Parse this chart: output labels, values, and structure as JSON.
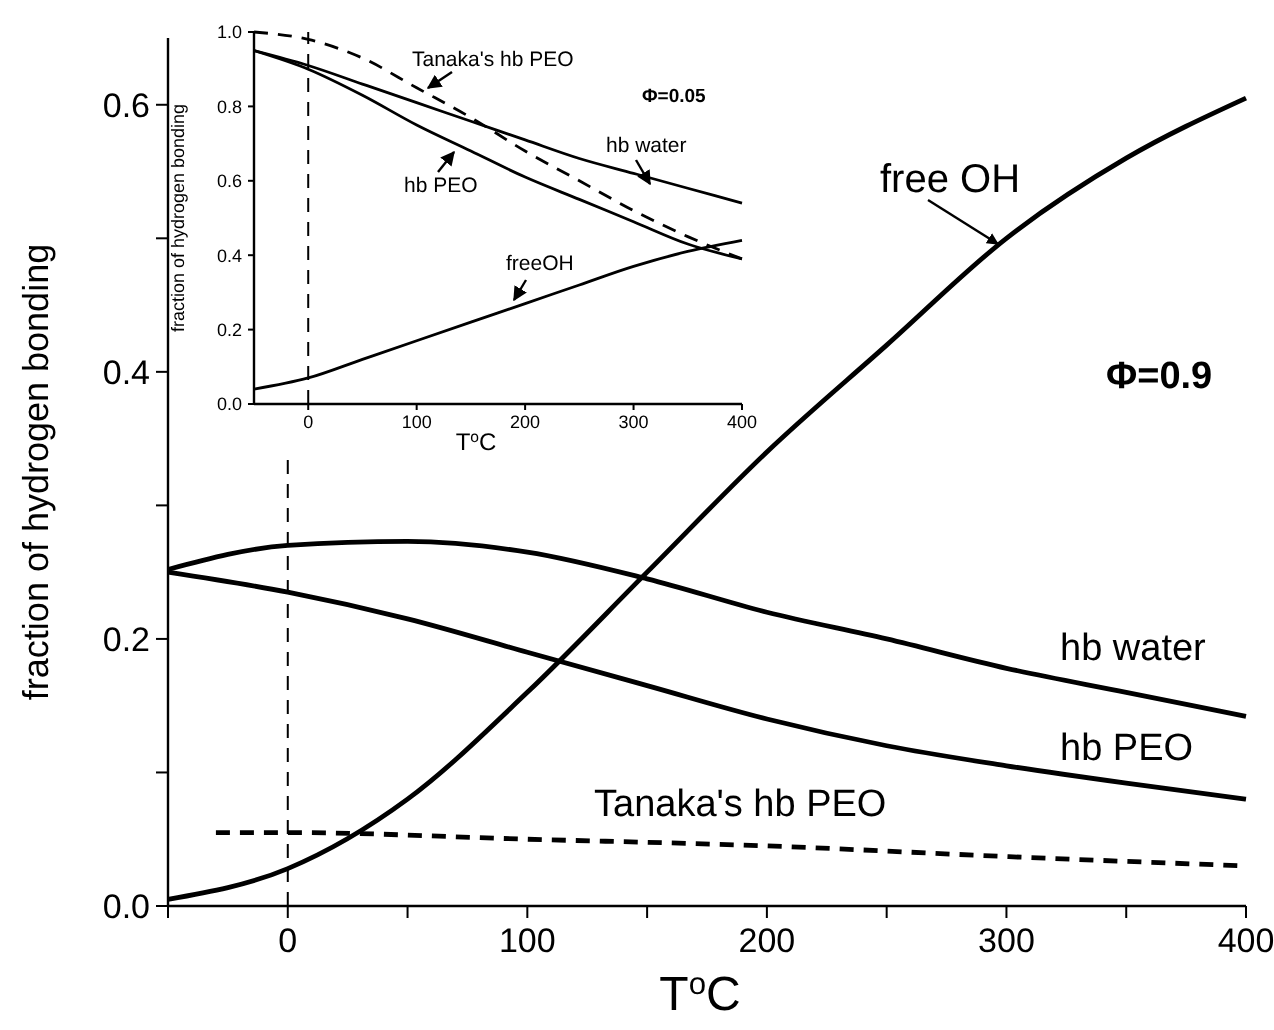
{
  "chart_data": [
    {
      "type": "line",
      "xlabel": "T$^{o}$C",
      "ylabel": "fraction of hydrogen bonding",
      "xlim": [
        -50,
        400
      ],
      "ylim": [
        0,
        0.65
      ],
      "xticks": [
        {
          "value": -50,
          "label": null
        },
        0,
        {
          "value": 50,
          "label": null
        },
        100,
        {
          "value": 150,
          "label": null
        },
        200,
        {
          "value": 250,
          "label": null
        },
        300,
        {
          "value": 350,
          "label": null
        },
        400
      ],
      "yticks": [
        {
          "value": 0,
          "label": "0.0"
        },
        {
          "value": 0.1,
          "label": null
        },
        0.2,
        {
          "value": 0.3,
          "label": null
        },
        0.4,
        {
          "value": 0.5,
          "label": null
        },
        0.6
      ],
      "ref_lines": [
        {
          "axis": "x",
          "value": 0,
          "line_style": "dashed"
        }
      ],
      "annotations": [
        "Φ=0.9"
      ],
      "series": [
        {
          "name": "free OH",
          "color": "#000000",
          "x": [
            -50,
            0,
            50,
            100,
            150,
            200,
            250,
            300,
            350,
            400
          ],
          "values": [
            0.005,
            0.028,
            0.08,
            0.16,
            0.25,
            0.34,
            0.42,
            0.5,
            0.56,
            0.605
          ]
        },
        {
          "name": "hb water",
          "color": "#000000",
          "x": [
            -50,
            0,
            50,
            100,
            150,
            200,
            250,
            300,
            350,
            400
          ],
          "values": [
            0.252,
            0.27,
            0.273,
            0.265,
            0.245,
            0.22,
            0.2,
            0.178,
            0.16,
            0.142
          ]
        },
        {
          "name": "hb PEO",
          "color": "#000000",
          "x": [
            -50,
            0,
            50,
            100,
            150,
            200,
            250,
            300,
            350,
            400
          ],
          "values": [
            0.25,
            0.235,
            0.215,
            0.19,
            0.165,
            0.14,
            0.12,
            0.105,
            0.092,
            0.08
          ]
        },
        {
          "name": "Tanaka's hb PEO",
          "color": "#000000",
          "line_style": "dashed",
          "x": [
            -30,
            0,
            100,
            200,
            300,
            400
          ],
          "values": [
            0.055,
            0.055,
            0.05,
            0.045,
            0.037,
            0.03
          ]
        }
      ]
    },
    {
      "type": "line",
      "xlabel": "T$^{o}$C",
      "ylabel": "fraction of hydrogen bonding",
      "xlim": [
        -50,
        400
      ],
      "ylim": [
        0,
        1
      ],
      "xticks": [
        0,
        100,
        200,
        300,
        400
      ],
      "yticks": [
        {
          "value": 0,
          "label": "0.0"
        },
        {
          "value": 0.2,
          "label": "0.2"
        },
        {
          "value": 0.4,
          "label": "0.4"
        },
        {
          "value": 0.6,
          "label": "0.6"
        },
        {
          "value": 0.8,
          "label": "0.8"
        },
        {
          "value": 1,
          "label": "1.0"
        }
      ],
      "ref_lines": [
        {
          "axis": "x",
          "value": 0,
          "line_style": "dashed"
        }
      ],
      "annotations": [
        "Φ=0.05"
      ],
      "series": [
        {
          "name": "Tanaka's hb PEO",
          "color": "#000000",
          "line_style": "dashed",
          "x": [
            -50,
            0,
            50,
            100,
            150,
            200,
            250,
            300,
            350,
            400
          ],
          "values": [
            1.0,
            0.98,
            0.93,
            0.85,
            0.77,
            0.68,
            0.6,
            0.52,
            0.45,
            0.39
          ]
        },
        {
          "name": "hb water",
          "color": "#000000",
          "x": [
            -50,
            0,
            50,
            100,
            150,
            200,
            250,
            300,
            350,
            400
          ],
          "values": [
            0.95,
            0.91,
            0.86,
            0.81,
            0.76,
            0.71,
            0.66,
            0.62,
            0.58,
            0.54
          ]
        },
        {
          "name": "hb PEO",
          "color": "#000000",
          "x": [
            -50,
            0,
            50,
            100,
            150,
            200,
            250,
            300,
            350,
            400
          ],
          "values": [
            0.95,
            0.9,
            0.83,
            0.75,
            0.68,
            0.61,
            0.55,
            0.49,
            0.43,
            0.39
          ]
        },
        {
          "name": "freeOH",
          "color": "#000000",
          "x": [
            -50,
            0,
            50,
            100,
            150,
            200,
            250,
            300,
            350,
            400
          ],
          "values": [
            0.04,
            0.07,
            0.12,
            0.17,
            0.22,
            0.27,
            0.32,
            0.37,
            0.41,
            0.44
          ]
        }
      ]
    }
  ]
}
